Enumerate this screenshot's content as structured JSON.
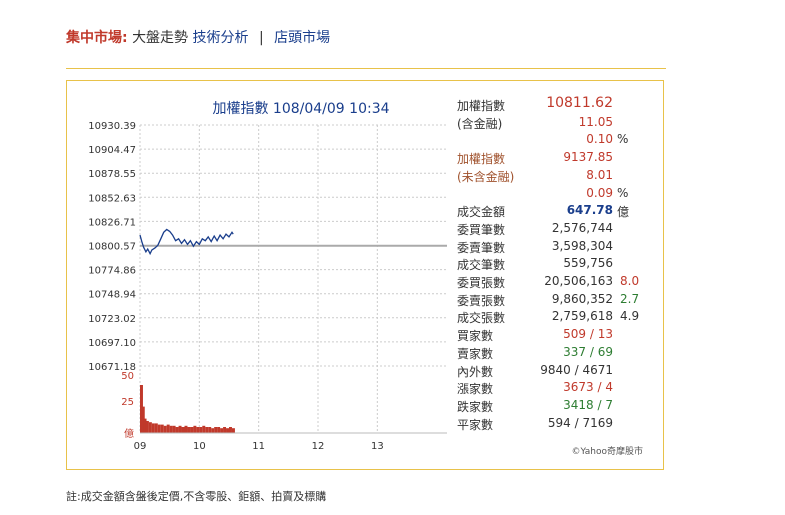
{
  "nav": {
    "title": "集中市場:",
    "current": "大盤走勢",
    "link1": "技術分析",
    "separator": "|",
    "link2": "店頭市場"
  },
  "colors": {
    "accent_red": "#c0392b",
    "link_blue": "#1a3e8c",
    "border_gold": "#e8c24a",
    "up_green": "#2e7d32"
  },
  "chart_data": {
    "type": "line",
    "title": "加權指數 108/04/09 10:34",
    "y_ticks": [
      "10930.39",
      "10904.47",
      "10878.55",
      "10852.63",
      "10826.71",
      "10800.57",
      "10774.86",
      "10748.94",
      "10723.02",
      "10697.10",
      "10671.18"
    ],
    "ylim": [
      10671.18,
      10930.39
    ],
    "reference": 10800.57,
    "x_ticks": [
      "09",
      "10",
      "11",
      "12",
      "13"
    ],
    "x_hours": [
      9,
      13.5
    ],
    "index_series": {
      "t": [
        9.0,
        9.03,
        9.06,
        9.1,
        9.13,
        9.17,
        9.2,
        9.25,
        9.3,
        9.35,
        9.4,
        9.45,
        9.5,
        9.55,
        9.6,
        9.65,
        9.7,
        9.75,
        9.8,
        9.85,
        9.9,
        9.95,
        10.0,
        10.05,
        10.1,
        10.15,
        10.2,
        10.25,
        10.3,
        10.35,
        10.4,
        10.45,
        10.5,
        10.55,
        10.57
      ],
      "v": [
        10812,
        10805,
        10799,
        10794,
        10797,
        10792,
        10796,
        10798,
        10801,
        10808,
        10815,
        10818,
        10816,
        10812,
        10806,
        10808,
        10803,
        10807,
        10802,
        10806,
        10800,
        10805,
        10802,
        10808,
        10806,
        10810,
        10805,
        10811,
        10806,
        10812,
        10808,
        10813,
        10810,
        10815,
        10813
      ]
    },
    "volume_series": {
      "label_ticks": [
        "50",
        "25",
        "億"
      ],
      "ymax": 50,
      "t": [
        9.0,
        9.03,
        9.06,
        9.1,
        9.15,
        9.2,
        9.25,
        9.3,
        9.35,
        9.4,
        9.45,
        9.5,
        9.55,
        9.6,
        9.65,
        9.7,
        9.75,
        9.8,
        9.85,
        9.9,
        9.95,
        10.0,
        10.05,
        10.1,
        10.15,
        10.2,
        10.25,
        10.3,
        10.35,
        10.4,
        10.45,
        10.5,
        10.55
      ],
      "v": [
        40,
        22,
        12,
        10,
        9,
        8,
        8,
        7,
        7,
        6,
        7,
        6,
        6,
        5,
        6,
        5,
        6,
        5,
        5,
        6,
        5,
        5,
        6,
        5,
        5,
        4,
        5,
        5,
        4,
        5,
        4,
        5,
        4
      ]
    }
  },
  "stats": {
    "rows": [
      {
        "label": "加權指數",
        "value": "10811.62",
        "value_color": "red",
        "label_color": "dark",
        "pct": "",
        "extra": ""
      },
      {
        "label": "(含金融)",
        "value": "11.05",
        "value_color": "red",
        "label_color": "dark",
        "pct": "",
        "extra": ""
      },
      {
        "label": "",
        "value": "0.10",
        "value_color": "red",
        "label_color": "dark",
        "pct": "%",
        "extra": ""
      },
      {
        "label": "加權指數",
        "value": "9137.85",
        "value_color": "red",
        "label_color": "brown",
        "pct": "",
        "extra": ""
      },
      {
        "label": "(未含金融)",
        "value": "8.01",
        "value_color": "red",
        "label_color": "brown",
        "pct": "",
        "extra": ""
      },
      {
        "label": "",
        "value": "0.09",
        "value_color": "red",
        "label_color": "dark",
        "pct": "%",
        "extra": ""
      },
      {
        "label": "成交金額",
        "value": "647.78",
        "value_color": "blue",
        "label_color": "dark",
        "pct": "億",
        "extra": ""
      },
      {
        "label": "委買筆數",
        "value": "2,576,744",
        "value_color": "dark",
        "label_color": "dark",
        "pct": "",
        "extra": ""
      },
      {
        "label": "委賣筆數",
        "value": "3,598,304",
        "value_color": "dark",
        "label_color": "dark",
        "pct": "",
        "extra": ""
      },
      {
        "label": "成交筆數",
        "value": "559,756",
        "value_color": "dark",
        "label_color": "dark",
        "pct": "",
        "extra": ""
      },
      {
        "label": "委買張數",
        "value": "20,506,163",
        "value_color": "dark",
        "label_color": "dark",
        "pct": "",
        "extra": "8.0",
        "extra_color": "red"
      },
      {
        "label": "委賣張數",
        "value": "9,860,352",
        "value_color": "dark",
        "label_color": "dark",
        "pct": "",
        "extra": "2.7",
        "extra_color": "green"
      },
      {
        "label": "成交張數",
        "value": "2,759,618",
        "value_color": "dark",
        "label_color": "dark",
        "pct": "",
        "extra": "4.9",
        "extra_color": "dark"
      },
      {
        "label": "買家數",
        "value": "509 / 13",
        "value_color": "red",
        "label_color": "dark",
        "pct": "",
        "extra": ""
      },
      {
        "label": "賣家數",
        "value": "337 / 69",
        "value_color": "green",
        "label_color": "dark",
        "pct": "",
        "extra": ""
      },
      {
        "label": "內外數",
        "value": "9840 / 4671",
        "value_color": "dark",
        "label_color": "dark",
        "pct": "",
        "extra": ""
      },
      {
        "label": "漲家數",
        "value": "3673 / 4",
        "value_color": "red",
        "label_color": "dark",
        "pct": "",
        "extra": ""
      },
      {
        "label": "跌家數",
        "value": "3418 / 7",
        "value_color": "green",
        "label_color": "dark",
        "pct": "",
        "extra": ""
      },
      {
        "label": "平家數",
        "value": "594 / 7169",
        "value_color": "dark",
        "label_color": "dark",
        "pct": "",
        "extra": ""
      }
    ]
  },
  "copyright": "©Yahoo奇摩股市",
  "footnote": "註:成交金額含盤後定價,不含零股、鉅額、拍賣及標購"
}
